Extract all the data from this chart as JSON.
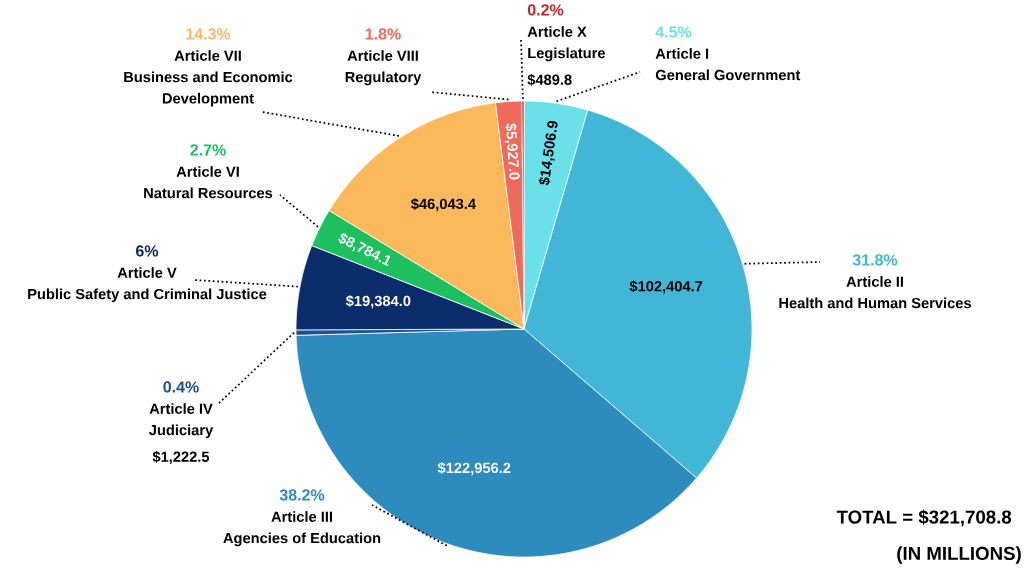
{
  "chart_data": {
    "type": "pie",
    "categories": [
      "Article I General Government",
      "Article II Health and Human Services",
      "Article III Agencies of Education",
      "Article IV Judiciary",
      "Article V Public Safety and Criminal Justice",
      "Article VI Natural Resources",
      "Article VII Business and Economic Development",
      "Article VIII Regulatory",
      "Article X Legislature"
    ],
    "values": [
      14506.9,
      102404.7,
      122956.2,
      1222.5,
      19384.0,
      8784.1,
      46043.4,
      5927.0,
      489.8
    ],
    "colors": [
      "#6ae0e8",
      "#41b6d6",
      "#2e8bbd",
      "#1f4f8f",
      "#0c2d6b",
      "#1dbf5e",
      "#fbb95c",
      "#ef6a5a",
      "#c0282d"
    ],
    "value_labels": [
      "$14,506.9",
      "$102,404.7",
      "$122,956.2",
      "$1,222.5",
      "$19,384.0",
      "$8,784.1",
      "$46,043.4",
      "$5,927.0",
      "$489.8"
    ],
    "annotations": [
      "4.5%",
      "31.8%",
      "38.2%",
      "0.4%",
      "6%",
      "2.7%",
      "14.3%",
      "1.8%",
      "0.2%",
      "TOTAL = $321,708.8",
      "(IN MILLIONS)"
    ]
  }
}
